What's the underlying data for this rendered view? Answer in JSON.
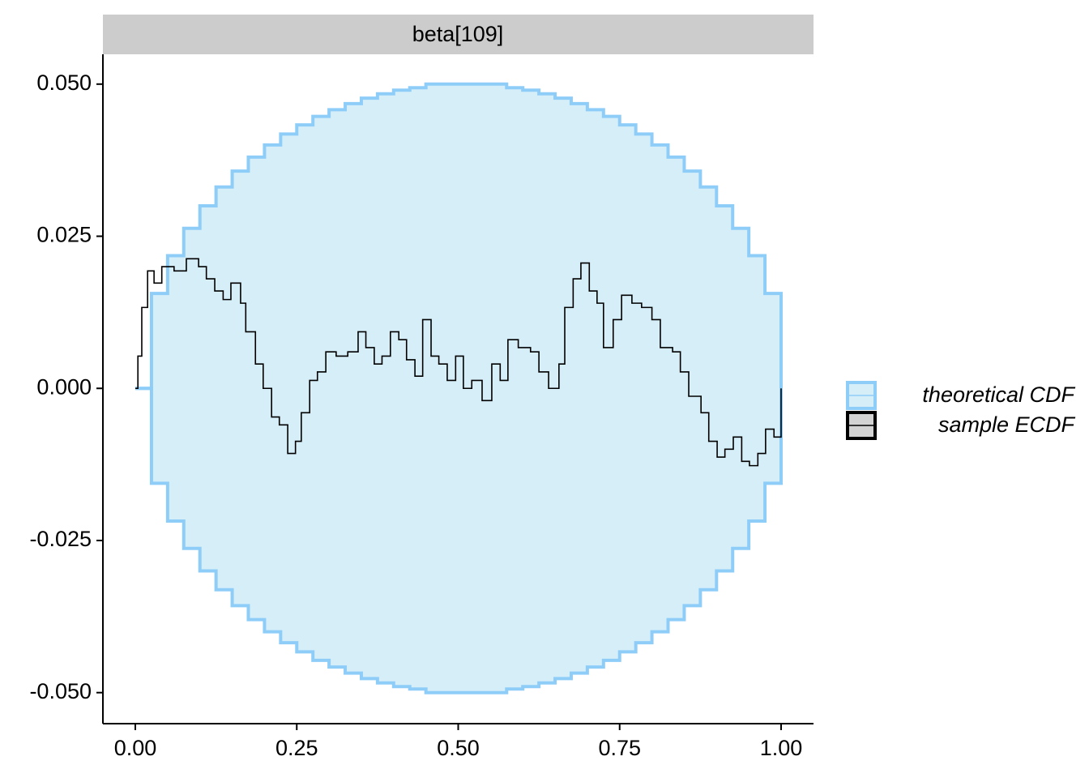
{
  "chart_data": {
    "type": "ecdf_difference",
    "strip_title": "beta[109]",
    "xlim": [
      -0.0502,
      1.0502
    ],
    "ylim": [
      -0.0551,
      0.0549
    ],
    "xticks": [
      {
        "value": 0,
        "label": "0.00"
      },
      {
        "value": 0.25,
        "label": "0.25"
      },
      {
        "value": 0.5,
        "label": "0.50"
      },
      {
        "value": 0.75,
        "label": "0.75"
      },
      {
        "value": 1,
        "label": "1.00"
      }
    ],
    "yticks": [
      {
        "value": -0.05,
        "label": "-0.050"
      },
      {
        "value": -0.025,
        "label": "-0.025"
      },
      {
        "value": 0,
        "label": "0.000"
      },
      {
        "value": 0.025,
        "label": "0.025"
      },
      {
        "value": 0.05,
        "label": "0.050"
      }
    ],
    "series": [
      {
        "name": "theoretical CDF",
        "color": "#8fcdf9",
        "fill": "#d6eef8",
        "x": [
          0,
          0.025,
          0.05,
          0.075,
          0.1,
          0.125,
          0.15,
          0.175,
          0.2,
          0.225,
          0.25,
          0.275,
          0.3,
          0.325,
          0.35,
          0.375,
          0.4,
          0.425,
          0.45,
          0.475,
          0.5,
          0.525,
          0.55,
          0.575,
          0.6,
          0.625,
          0.65,
          0.675,
          0.7,
          0.725,
          0.75,
          0.775,
          0.8,
          0.825,
          0.85,
          0.875,
          0.9,
          0.925,
          0.95,
          0.975,
          1
        ],
        "upper": [
          0,
          0.0156,
          0.0218,
          0.0263,
          0.03,
          0.0331,
          0.0357,
          0.038,
          0.04,
          0.0418,
          0.0433,
          0.0447,
          0.0458,
          0.0468,
          0.0477,
          0.0484,
          0.049,
          0.0494,
          0.05,
          0.05,
          0.05,
          0.05,
          0.05,
          0.0494,
          0.049,
          0.0484,
          0.0477,
          0.0468,
          0.0458,
          0.0447,
          0.0433,
          0.0418,
          0.04,
          0.038,
          0.0357,
          0.0331,
          0.03,
          0.0263,
          0.0218,
          0.0156,
          0
        ],
        "lower": [
          0,
          -0.0156,
          -0.0218,
          -0.0263,
          -0.03,
          -0.0331,
          -0.0357,
          -0.038,
          -0.04,
          -0.0418,
          -0.0433,
          -0.0447,
          -0.0458,
          -0.0468,
          -0.0477,
          -0.0484,
          -0.049,
          -0.0494,
          -0.05,
          -0.05,
          -0.05,
          -0.05,
          -0.05,
          -0.0494,
          -0.049,
          -0.0484,
          -0.0477,
          -0.0468,
          -0.0458,
          -0.0447,
          -0.0433,
          -0.0418,
          -0.04,
          -0.038,
          -0.0357,
          -0.0331,
          -0.03,
          -0.0263,
          -0.0218,
          -0.0156,
          0
        ]
      },
      {
        "name": "sample ECDF",
        "color": "#000000",
        "key_fill": "#d3d3d3",
        "x": [
          0,
          0.004,
          0.01,
          0.019,
          0.029,
          0.041,
          0.06,
          0.079,
          0.098,
          0.11,
          0.123,
          0.136,
          0.148,
          0.163,
          0.171,
          0.186,
          0.198,
          0.211,
          0.223,
          0.236,
          0.248,
          0.257,
          0.27,
          0.282,
          0.295,
          0.311,
          0.329,
          0.345,
          0.357,
          0.37,
          0.382,
          0.395,
          0.408,
          0.42,
          0.433,
          0.445,
          0.458,
          0.47,
          0.483,
          0.496,
          0.508,
          0.521,
          0.537,
          0.552,
          0.565,
          0.577,
          0.593,
          0.612,
          0.625,
          0.64,
          0.656,
          0.665,
          0.678,
          0.69,
          0.703,
          0.715,
          0.725,
          0.74,
          0.753,
          0.769,
          0.784,
          0.8,
          0.813,
          0.832,
          0.844,
          0.857,
          0.876,
          0.888,
          0.901,
          0.913,
          0.926,
          0.939,
          0.951,
          0.964,
          0.976,
          0.989,
          1
        ],
        "values": [
          0,
          0.0053,
          0.0133,
          0.0193,
          0.0173,
          0.02,
          0.0193,
          0.0213,
          0.02,
          0.018,
          0.016,
          0.0146,
          0.0173,
          0.014,
          0.0093,
          0.004,
          0,
          -0.0047,
          -0.006,
          -0.0107,
          -0.0087,
          -0.004,
          0.0013,
          0.0027,
          0.006,
          0.0053,
          0.006,
          0.0093,
          0.0067,
          0.004,
          0.0053,
          0.0093,
          0.008,
          0.0047,
          0.002,
          0.0113,
          0.0053,
          0.004,
          0.0013,
          0.0053,
          0,
          0.0013,
          -0.002,
          0.004,
          0.0013,
          0.008,
          0.0067,
          0.006,
          0.0027,
          0,
          0.004,
          0.0133,
          0.018,
          0.0206,
          0.016,
          0.014,
          0.0067,
          0.0113,
          0.0153,
          0.014,
          0.0133,
          0.0113,
          0.0067,
          0.006,
          0.0027,
          -0.0013,
          -0.004,
          -0.0087,
          -0.0113,
          -0.01,
          -0.008,
          -0.012,
          -0.0127,
          -0.0107,
          -0.0067,
          -0.008,
          0
        ]
      }
    ]
  }
}
